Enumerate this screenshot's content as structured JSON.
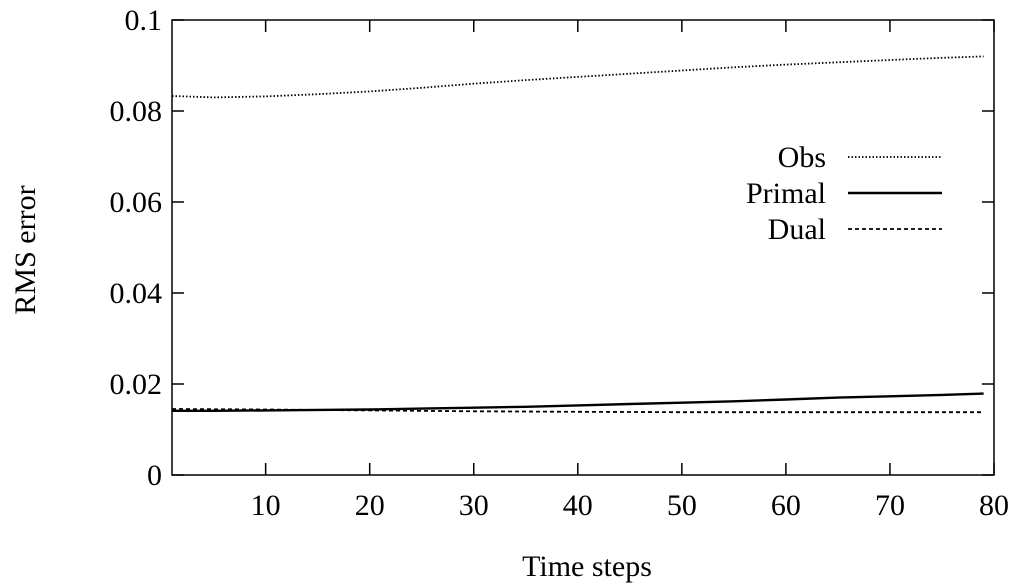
{
  "chart_data": {
    "type": "line",
    "xlabel": "Time steps",
    "ylabel": "RMS error",
    "xlim": [
      1,
      80
    ],
    "ylim": [
      0,
      0.1
    ],
    "xticks": [
      10,
      20,
      30,
      40,
      50,
      60,
      70,
      80
    ],
    "yticks": [
      0,
      0.02,
      0.04,
      0.06,
      0.08,
      0.1
    ],
    "xtick_labels": [
      "10",
      "20",
      "30",
      "40",
      "50",
      "60",
      "70",
      "80"
    ],
    "ytick_labels": [
      "0",
      "0.02",
      "0.04",
      "0.06",
      "0.08",
      "0.1"
    ],
    "grid": false,
    "legend_position": "right",
    "series": [
      {
        "name": "Obs",
        "style": "dotted",
        "x": [
          1,
          5,
          10,
          15,
          20,
          25,
          30,
          35,
          40,
          45,
          50,
          55,
          60,
          65,
          70,
          75,
          79
        ],
        "y": [
          0.0833,
          0.083,
          0.0832,
          0.0837,
          0.0843,
          0.0851,
          0.086,
          0.0868,
          0.0875,
          0.0882,
          0.0889,
          0.0896,
          0.0902,
          0.0907,
          0.0912,
          0.0917,
          0.092
        ]
      },
      {
        "name": "Primal",
        "style": "solid",
        "x": [
          1,
          5,
          10,
          15,
          20,
          25,
          30,
          35,
          40,
          45,
          50,
          55,
          60,
          65,
          70,
          75,
          79
        ],
        "y": [
          0.0141,
          0.0141,
          0.0142,
          0.0143,
          0.0144,
          0.0146,
          0.0148,
          0.015,
          0.0153,
          0.0156,
          0.0159,
          0.0162,
          0.0166,
          0.017,
          0.0173,
          0.0176,
          0.0179
        ]
      },
      {
        "name": "Dual",
        "style": "dashed",
        "x": [
          1,
          10,
          20,
          30,
          40,
          50,
          60,
          70,
          79
        ],
        "y": [
          0.0145,
          0.0144,
          0.0142,
          0.014,
          0.0139,
          0.0138,
          0.0138,
          0.0138,
          0.0138
        ]
      }
    ]
  }
}
